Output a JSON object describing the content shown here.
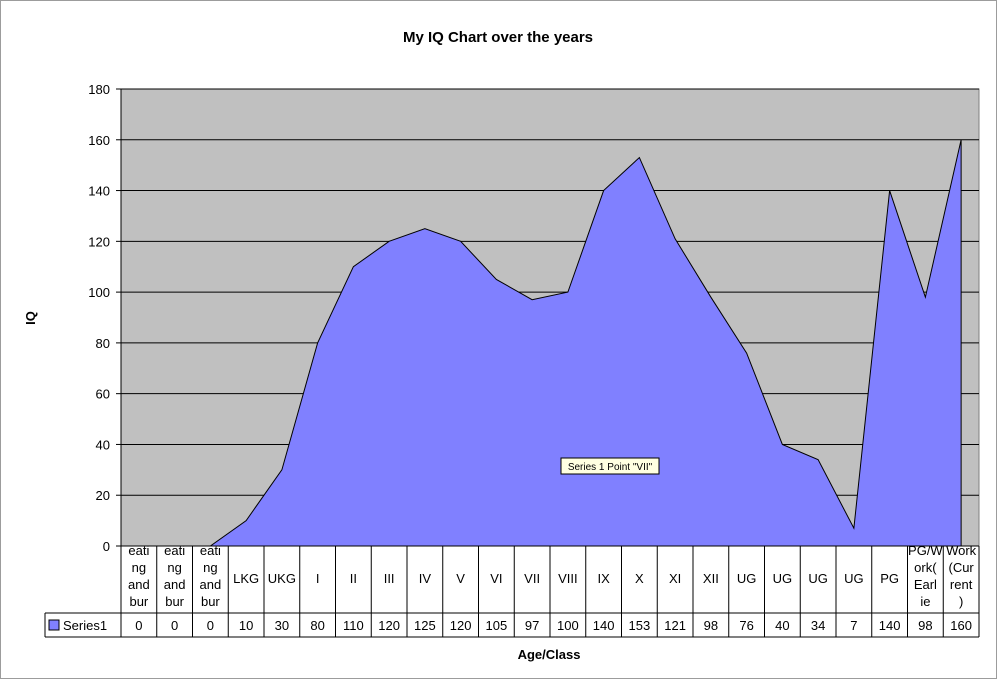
{
  "chart_data": {
    "type": "area",
    "title": "My IQ Chart over the years",
    "xlabel": "Age/Class",
    "ylabel": "IQ",
    "ylim": [
      0,
      180
    ],
    "yticks": [
      0,
      20,
      40,
      60,
      80,
      100,
      120,
      140,
      160,
      180
    ],
    "grid": true,
    "legend": "data table",
    "categories": [
      "eating and bur",
      "eating and bur",
      "eating and bur",
      "LKG",
      "UKG",
      "I",
      "II",
      "III",
      "IV",
      "V",
      "VI",
      "VII",
      "VIII",
      "IX",
      "X",
      "XI",
      "XII",
      "UG",
      "UG",
      "UG",
      "UG",
      "PG",
      "PG/Work(Earlie",
      "Work(Current)"
    ],
    "series": [
      {
        "name": "Series1",
        "values": [
          0,
          0,
          0,
          10,
          30,
          80,
          110,
          120,
          125,
          120,
          105,
          97,
          100,
          140,
          153,
          121,
          98,
          76,
          40,
          34,
          7,
          140,
          98,
          160
        ],
        "color": "#8080ff"
      }
    ],
    "tooltip": "Series 1 Point \"VII\""
  },
  "colors": {
    "plot_background": "#c0c0c0",
    "area_fill": "#8080ff",
    "gridline": "#000000"
  }
}
